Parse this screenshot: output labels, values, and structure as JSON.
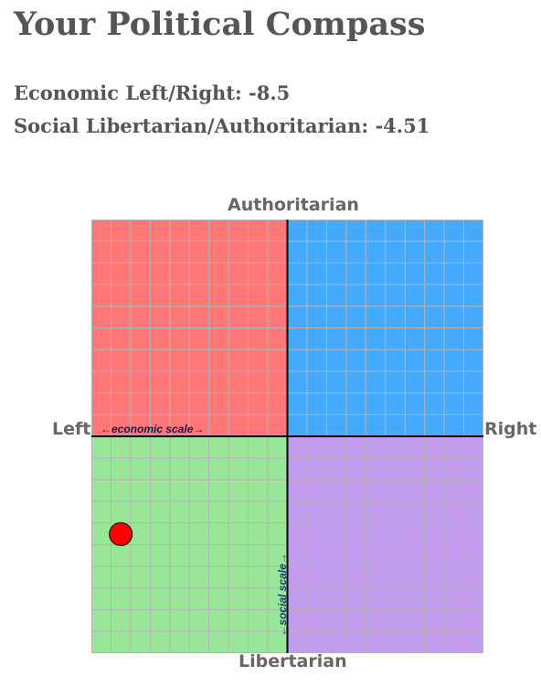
{
  "page": {
    "title": "Your Political Compass",
    "economic_line": "Economic Left/Right: -8.5",
    "social_line": "Social Libertarian/Authoritarian: -4.51"
  },
  "chart_data": {
    "type": "scatter",
    "title": "",
    "axes": {
      "top": "Authoritarian",
      "bottom": "Libertarian",
      "left": "Left",
      "right": "Right"
    },
    "xlim": [
      -10,
      10
    ],
    "ylim": [
      -10,
      10
    ],
    "grid": true,
    "grid_divisions": 20,
    "economic_scale_label": "←economic scale→",
    "social_scale_label": "←social scale→",
    "quadrant_colors": {
      "authoritarian_left": "#ff7777",
      "authoritarian_right": "#44aaff",
      "libertarian_left": "#99e699",
      "libertarian_right": "#c29bed"
    },
    "grid_color": "#b3b3b3",
    "marker_color": "#ff0000",
    "points": [
      {
        "x": -8.5,
        "y": -4.51
      }
    ]
  }
}
